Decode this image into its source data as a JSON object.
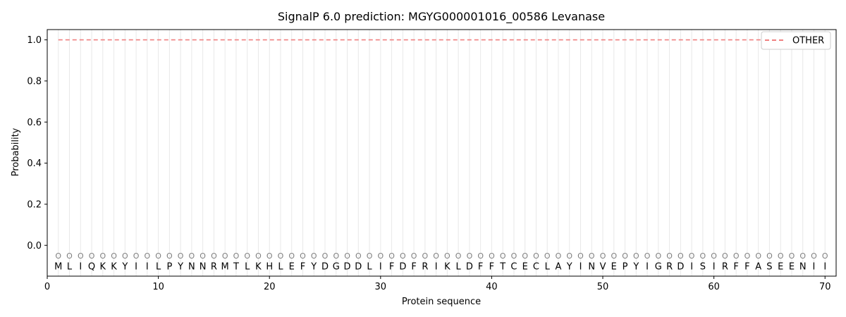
{
  "chart_data": {
    "type": "line",
    "title": "SignalP 6.0 prediction: MGYG000001016_00586 Levanase",
    "xlabel": "Protein sequence",
    "ylabel": "Probability",
    "xlim": [
      0,
      71
    ],
    "ylim": [
      -0.15,
      1.05
    ],
    "x_ticks": [
      0,
      10,
      20,
      30,
      40,
      50,
      60,
      70
    ],
    "y_ticks": [
      0.0,
      0.2,
      0.4,
      0.6,
      0.8,
      1.0
    ],
    "x_tick_labels": [
      "0",
      "10",
      "20",
      "30",
      "40",
      "50",
      "60",
      "70"
    ],
    "y_tick_labels": [
      "0.0",
      "0.2",
      "0.4",
      "0.6",
      "0.8",
      "1.0"
    ],
    "sequence": [
      "M",
      "L",
      "I",
      "Q",
      "K",
      "K",
      "Y",
      "I",
      "I",
      "L",
      "P",
      "Y",
      "N",
      "N",
      "R",
      "M",
      "T",
      "L",
      "K",
      "H",
      "L",
      "E",
      "F",
      "Y",
      "D",
      "G",
      "D",
      "D",
      "L",
      "I",
      "F",
      "D",
      "F",
      "R",
      "I",
      "K",
      "L",
      "D",
      "F",
      "F",
      "T",
      "C",
      "E",
      "C",
      "L",
      "A",
      "Y",
      "I",
      "N",
      "V",
      "E",
      "P",
      "Y",
      "I",
      "G",
      "R",
      "D",
      "I",
      "S",
      "I",
      "R",
      "F",
      "F",
      "A",
      "S",
      "E",
      "E",
      "N",
      "I",
      "I"
    ],
    "region_labels": [
      "O",
      "O",
      "O",
      "O",
      "O",
      "O",
      "O",
      "O",
      "O",
      "O",
      "O",
      "O",
      "O",
      "O",
      "O",
      "O",
      "O",
      "O",
      "O",
      "O",
      "O",
      "O",
      "O",
      "O",
      "O",
      "O",
      "O",
      "O",
      "O",
      "O",
      "O",
      "O",
      "O",
      "O",
      "O",
      "O",
      "O",
      "O",
      "O",
      "O",
      "O",
      "O",
      "O",
      "O",
      "O",
      "O",
      "O",
      "O",
      "O",
      "O",
      "O",
      "O",
      "O",
      "O",
      "O",
      "O",
      "O",
      "O",
      "O",
      "O",
      "O",
      "O",
      "O",
      "O",
      "O",
      "O",
      "O",
      "O",
      "O",
      "O"
    ],
    "series": [
      {
        "name": "OTHER",
        "color": "#f08080",
        "style": "dashed",
        "x": [
          1,
          70
        ],
        "y": [
          1.0,
          1.0
        ]
      }
    ],
    "legend": {
      "placement": "top-right",
      "entries": [
        "OTHER"
      ]
    },
    "grid": "vertical lines at each residue"
  }
}
